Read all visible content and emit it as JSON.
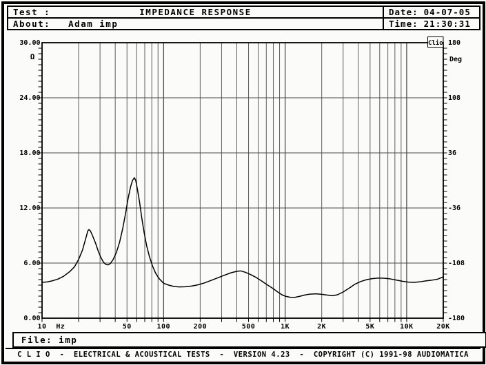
{
  "header": {
    "test_label": "Test :",
    "title": "IMPEDANCE RESPONSE",
    "about_label": "About:",
    "about_value": "Adam imp",
    "date_label": "Date:",
    "date_value": "04-07-05",
    "time_label": "Time:",
    "time_value": "21:30:31"
  },
  "footer": {
    "file_label": "File:",
    "file_value": "imp",
    "status_text": "C L I O  -  ELECTRICAL & ACOUSTICAL TESTS  -  VERSION 4.23  -  COPYRIGHT (C) 1991-98 AUDIOMATICA"
  },
  "chart_data": {
    "type": "line",
    "title": "IMPEDANCE RESPONSE",
    "watermark": "Clio",
    "x_axis": {
      "scale": "log",
      "min": 10,
      "max": 20000,
      "unit": "Hz",
      "tick_labels": [
        [
          10,
          "10"
        ],
        [
          50,
          "50"
        ],
        [
          100,
          "100"
        ],
        [
          200,
          "200"
        ],
        [
          500,
          "500"
        ],
        [
          1000,
          "1K"
        ],
        [
          2000,
          "2K"
        ],
        [
          5000,
          "5K"
        ],
        [
          10000,
          "10K"
        ],
        [
          20000,
          "20K"
        ]
      ],
      "grid_freqs": [
        20,
        30,
        40,
        50,
        60,
        70,
        80,
        90,
        100,
        200,
        300,
        400,
        500,
        600,
        700,
        800,
        900,
        1000,
        2000,
        3000,
        4000,
        5000,
        6000,
        7000,
        8000,
        9000,
        10000
      ]
    },
    "y_left": {
      "unit": "Ω",
      "min": 0,
      "max": 30,
      "ticks": [
        [
          30,
          "30.00"
        ],
        [
          24,
          "24.00"
        ],
        [
          18,
          "18.00"
        ],
        [
          12,
          "12.00"
        ],
        [
          6,
          "6.00"
        ],
        [
          0,
          "0.00"
        ]
      ],
      "grid_values": [
        6,
        12,
        18,
        24
      ],
      "minor_step": 0.6
    },
    "y_right": {
      "unit": "Deg",
      "min": -180,
      "max": 180,
      "ticks": [
        [
          180,
          "180"
        ],
        [
          108,
          "108"
        ],
        [
          36,
          "36"
        ],
        [
          -36,
          "-36"
        ],
        [
          -108,
          "-108"
        ],
        [
          -180,
          "-180"
        ]
      ]
    },
    "series": [
      {
        "name": "impedance-magnitude",
        "color": "#000000",
        "points": [
          [
            10,
            3.9
          ],
          [
            11,
            3.95
          ],
          [
            12,
            4.05
          ],
          [
            13.5,
            4.25
          ],
          [
            15,
            4.55
          ],
          [
            17,
            5.1
          ],
          [
            18.5,
            5.6
          ],
          [
            20,
            6.4
          ],
          [
            21.5,
            7.4
          ],
          [
            22.8,
            8.6
          ],
          [
            23.8,
            9.5
          ],
          [
            24.3,
            9.65
          ],
          [
            25,
            9.5
          ],
          [
            26,
            9.0
          ],
          [
            27.5,
            8.2
          ],
          [
            29,
            7.3
          ],
          [
            30.5,
            6.6
          ],
          [
            32,
            6.1
          ],
          [
            33.5,
            5.85
          ],
          [
            35,
            5.8
          ],
          [
            36.5,
            5.95
          ],
          [
            38.5,
            6.4
          ],
          [
            41,
            7.2
          ],
          [
            43.5,
            8.3
          ],
          [
            46,
            9.7
          ],
          [
            48.5,
            11.3
          ],
          [
            51,
            13.0
          ],
          [
            53.5,
            14.3
          ],
          [
            55.5,
            15.0
          ],
          [
            57.5,
            15.3
          ],
          [
            59,
            15.0
          ],
          [
            61,
            14.0
          ],
          [
            63.5,
            12.6
          ],
          [
            66,
            11.0
          ],
          [
            69,
            9.4
          ],
          [
            72.5,
            7.9
          ],
          [
            76.5,
            6.7
          ],
          [
            81,
            5.7
          ],
          [
            86,
            4.9
          ],
          [
            92,
            4.3
          ],
          [
            100,
            3.8
          ],
          [
            110,
            3.6
          ],
          [
            122,
            3.45
          ],
          [
            135,
            3.4
          ],
          [
            150,
            3.42
          ],
          [
            170,
            3.5
          ],
          [
            190,
            3.62
          ],
          [
            215,
            3.82
          ],
          [
            245,
            4.1
          ],
          [
            280,
            4.4
          ],
          [
            320,
            4.7
          ],
          [
            360,
            4.95
          ],
          [
            400,
            5.1
          ],
          [
            430,
            5.15
          ],
          [
            470,
            5.0
          ],
          [
            520,
            4.75
          ],
          [
            575,
            4.45
          ],
          [
            640,
            4.05
          ],
          [
            710,
            3.65
          ],
          [
            790,
            3.25
          ],
          [
            870,
            2.85
          ],
          [
            940,
            2.55
          ],
          [
            1010,
            2.38
          ],
          [
            1100,
            2.28
          ],
          [
            1200,
            2.27
          ],
          [
            1320,
            2.38
          ],
          [
            1450,
            2.52
          ],
          [
            1600,
            2.62
          ],
          [
            1800,
            2.65
          ],
          [
            2000,
            2.6
          ],
          [
            2200,
            2.52
          ],
          [
            2450,
            2.45
          ],
          [
            2700,
            2.55
          ],
          [
            3000,
            2.85
          ],
          [
            3350,
            3.25
          ],
          [
            3750,
            3.7
          ],
          [
            4200,
            4.0
          ],
          [
            4700,
            4.2
          ],
          [
            5200,
            4.3
          ],
          [
            5800,
            4.37
          ],
          [
            6500,
            4.35
          ],
          [
            7300,
            4.28
          ],
          [
            8200,
            4.15
          ],
          [
            9200,
            4.02
          ],
          [
            10300,
            3.93
          ],
          [
            11500,
            3.9
          ],
          [
            13000,
            3.97
          ],
          [
            14500,
            4.07
          ],
          [
            16000,
            4.13
          ],
          [
            18000,
            4.25
          ],
          [
            20000,
            4.5
          ]
        ]
      }
    ]
  }
}
